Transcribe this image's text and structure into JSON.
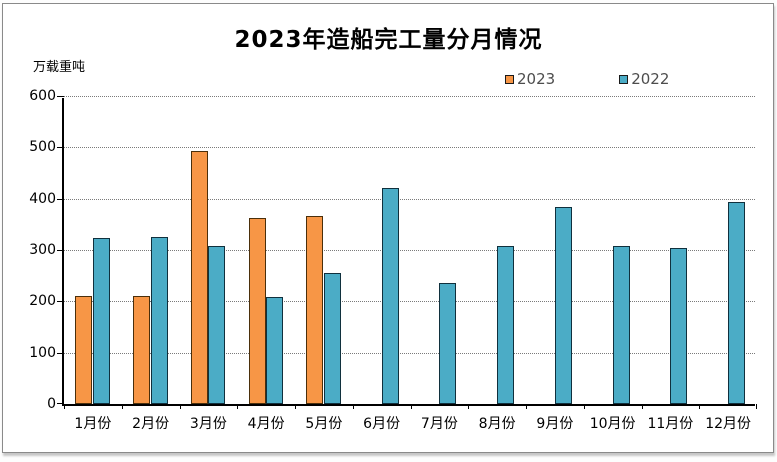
{
  "chart_data": {
    "type": "bar",
    "title": "2023年造船完工量分月情况",
    "ylabel": "万载重吨",
    "xlabel": "",
    "categories": [
      "1月份",
      "2月份",
      "3月份",
      "4月份",
      "5月份",
      "6月份",
      "7月份",
      "8月份",
      "9月份",
      "10月份",
      "11月份",
      "12月份"
    ],
    "series": [
      {
        "name": "2023",
        "color": "#F79646",
        "border_color": "#4a2f0b",
        "values": [
          210,
          210,
          493,
          362,
          367,
          null,
          null,
          null,
          null,
          null,
          null,
          null
        ]
      },
      {
        "name": "2022",
        "color": "#4BACC6",
        "border_color": "#10303d",
        "values": [
          324,
          326,
          307,
          209,
          255,
          420,
          235,
          308,
          384,
          307,
          303,
          394
        ]
      }
    ],
    "ylim": [
      0,
      600
    ],
    "yticks": [
      0,
      100,
      200,
      300,
      400,
      500,
      600
    ],
    "grid": "horizontal-dotted",
    "legend_position": "top-right",
    "axis_color": "#000000",
    "gridline_color": "#7a7a7a"
  }
}
